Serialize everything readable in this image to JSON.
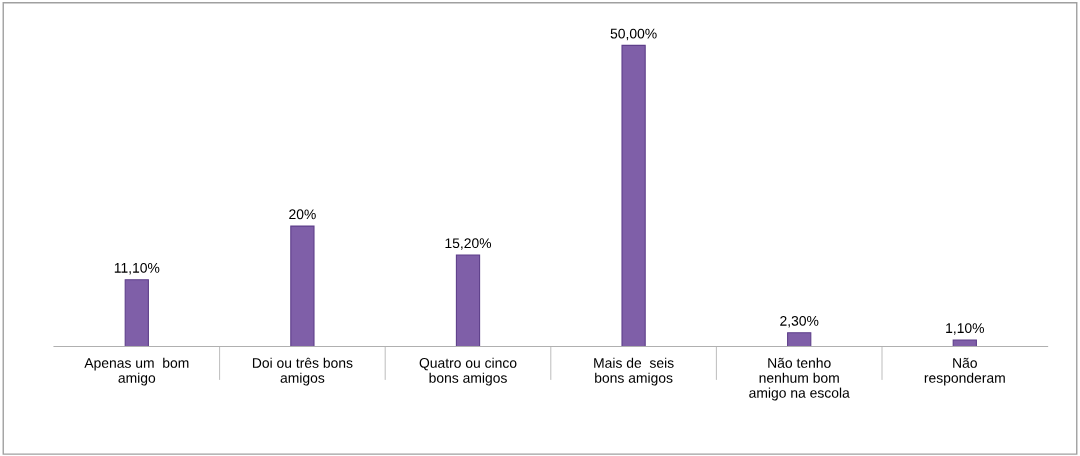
{
  "chart_data": {
    "type": "bar",
    "categories": [
      "Apenas um  bom\namigo",
      "Doi ou três bons\namigos",
      "Quatro ou cinco\nbons amigos",
      "Mais de  seis\nbons amigos",
      "Não tenho\nnenhum bom\namigo na escola",
      "Não\nresponderam"
    ],
    "values": [
      11.1,
      20,
      15.2,
      50,
      2.3,
      1.1
    ],
    "value_labels": [
      "11,10%",
      "20%",
      "15,20%",
      "50,00%",
      "2,30%",
      "1,10%"
    ],
    "color": "#7f5fa8",
    "grid": false,
    "legend": false
  }
}
